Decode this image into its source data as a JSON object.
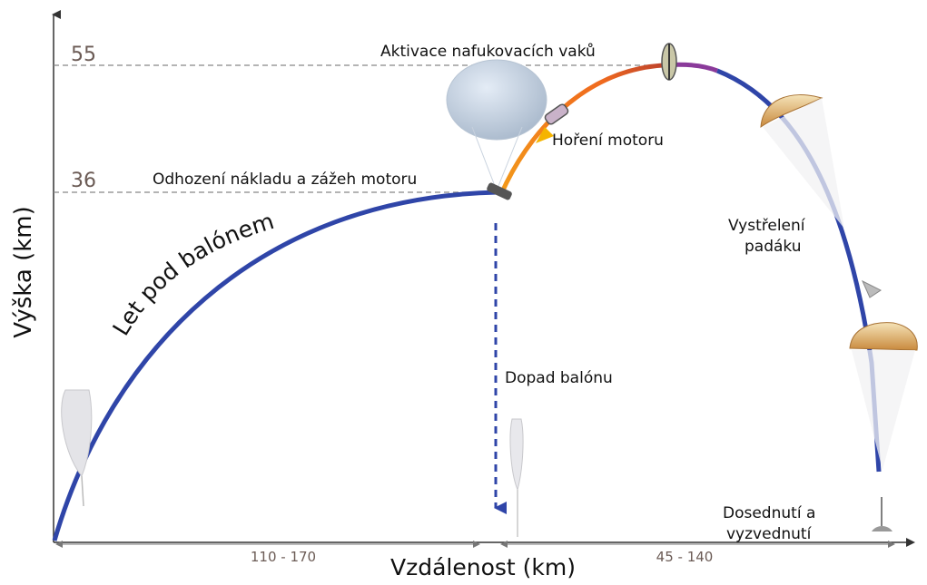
{
  "axes": {
    "y_label": "Výška (km)",
    "x_label": "Vzdálenost (km)",
    "y_ticks": [
      "55",
      "36"
    ]
  },
  "distances": {
    "first_segment": "110 - 170",
    "second_segment": "45 - 140"
  },
  "labels": {
    "balloon_flight": "Let pod balónem",
    "drop_and_ignition": "Odhození nákladu a zážeh motoru",
    "motor_burn": "Hoření motoru",
    "airbag_activation": "Aktivace nafukovacích vaků",
    "parachute_deploy_line1": "Vystřelení",
    "parachute_deploy_line2": "padáku",
    "balloon_impact": "Dopad balónu",
    "landing_line1": "Dosednutí a",
    "landing_line2": "vyzvednutí"
  },
  "colors": {
    "balloon_path": "#2f45a8",
    "rocket_path": "#f07a1c",
    "rocket_top": "#8a3a9a",
    "dashed_ref": "#888888",
    "axis": "#333333",
    "impact_arrow": "#2f45a8"
  }
}
